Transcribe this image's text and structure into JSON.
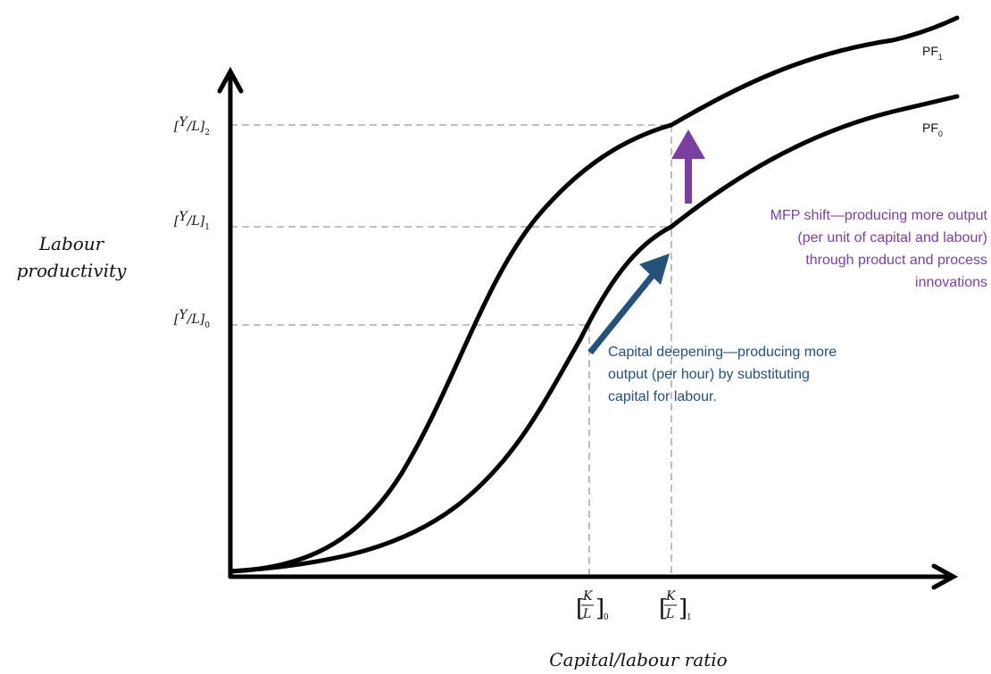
{
  "axes": {
    "y_title_line1": "Labour",
    "y_title_line2": "productivity",
    "x_title": "Capital/labour ratio",
    "y_ticks": [
      {
        "label": "Y",
        "denom": "L",
        "sub": "2"
      },
      {
        "label": "Y",
        "denom": "L",
        "sub": "1"
      },
      {
        "label": "Y",
        "denom": "L",
        "sub": "0"
      }
    ],
    "x_ticks": [
      {
        "num": "K",
        "denom": "L",
        "sub": "0"
      },
      {
        "num": "K",
        "denom": "L",
        "sub": "1"
      }
    ]
  },
  "curves": {
    "pf1": {
      "label": "PF",
      "sub": "1"
    },
    "pf0": {
      "label": "PF",
      "sub": "0"
    }
  },
  "annotations": {
    "mfp": {
      "color": "#7B3FA0",
      "lines": [
        "MFP shift—producing more output",
        "(per unit of capital and labour)",
        "through product and process",
        "innovations"
      ]
    },
    "capital": {
      "color": "#24527A",
      "lines": [
        "Capital deepening—producing more",
        "output (per hour) by substituting",
        "capital for labour."
      ]
    }
  },
  "colors": {
    "axis": "#000000",
    "guide": "#9a9a9a",
    "mfp_arrow": "#7B3FA0",
    "capital_arrow": "#24527A"
  }
}
